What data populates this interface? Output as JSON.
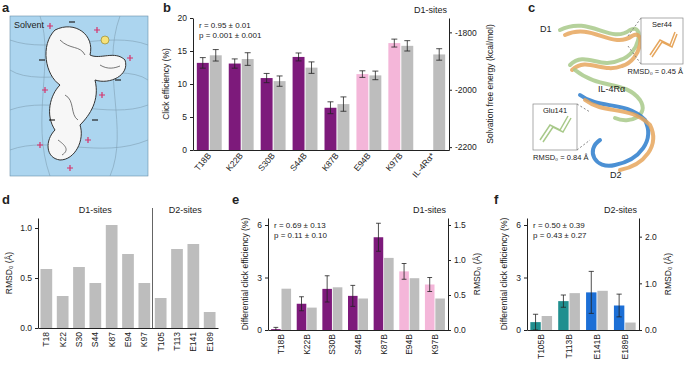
{
  "illustrations": [
    {
      "label": "a",
      "texts": {
        "medium": "Solvent"
      }
    },
    {
      "label": "c",
      "texts": {
        "domain1": "D1",
        "receptor": "IL-4Rα",
        "domain2": "D2",
        "inset1_residue": "Ser44",
        "inset1_rmsd": "RMSD₀ = 0.45 Å",
        "inset2_residue": "Glu141",
        "inset2_rmsd": "RMSD₀ = 0.84 Å"
      }
    }
  ],
  "chart_data": [
    {
      "label": "b",
      "type": "bar",
      "title": "D1-sites",
      "categories": [
        "T18B",
        "K22B",
        "S30B",
        "S44B",
        "K87B",
        "E94B",
        "K97B",
        "IL-4Rα*"
      ],
      "ylabel": "Click efficiency (%)",
      "y2label": "Solvation free energy (kcal/mol)",
      "ylim": [
        0,
        20
      ],
      "yticks": [
        0,
        5,
        10,
        15,
        20
      ],
      "y2lim": [
        -2210,
        -1750
      ],
      "y2ticks": [
        -2200,
        -2000,
        -1800
      ],
      "annotations": [
        "r = 0.95 ± 0.01",
        "p = 0.001 ± 0.001"
      ],
      "series": [
        {
          "colors": [
            "#7d1a7b",
            "#7d1a7b",
            "#7d1a7b",
            "#7d1a7b",
            "#7d1a7b",
            "#f4b6d9",
            "#f4b6d9",
            null
          ],
          "values": [
            13.2,
            13.1,
            10.9,
            14.1,
            6.4,
            11.5,
            16.2,
            null
          ],
          "errors": [
            0.8,
            0.7,
            0.7,
            0.6,
            0.9,
            0.5,
            0.6,
            null
          ]
        },
        {
          "axis": "y2",
          "color": "#bdbdbd",
          "values": [
            -1880,
            -1893,
            -1970,
            -1923,
            -2050,
            -1950,
            -1847,
            -1877
          ],
          "errors": [
            20,
            22,
            18,
            20,
            25,
            15,
            18,
            20
          ]
        }
      ]
    },
    {
      "label": "d",
      "type": "bar",
      "categories": [
        "T18",
        "K22",
        "S30",
        "S44",
        "K87",
        "E94",
        "K97",
        "T105",
        "T113",
        "E141",
        "E189"
      ],
      "ylabel": "RMSD₀ (Å)",
      "ylim": [
        0,
        1.1
      ],
      "yticks": [
        {
          "value": 0,
          "label": "0.0"
        },
        {
          "value": 0.5,
          "label": "0.5"
        },
        {
          "value": 1,
          "label": "1.0"
        }
      ],
      "annotations": [
        "D1-sites",
        "D2-sites"
      ],
      "color": "#bdbdbd",
      "values": [
        0.59,
        0.32,
        0.61,
        0.45,
        1.03,
        0.74,
        0.45,
        0.3,
        0.79,
        0.84,
        0.16
      ]
    },
    {
      "label": "e",
      "type": "bar",
      "title": "D1-sites",
      "categories": [
        "T18B",
        "K22B",
        "S30B",
        "S44B",
        "K87B",
        "E94B",
        "K97B"
      ],
      "ylabel": "Differential click efficiency (%)",
      "y2label": "RMSD₀ (Å)",
      "ylim": [
        0,
        6.4
      ],
      "yticks": [
        0,
        3,
        6
      ],
      "y2lim": [
        0,
        1.6
      ],
      "y2ticks": [
        {
          "value": 0,
          "label": "0.0"
        },
        {
          "value": 0.5,
          "label": "0.5"
        },
        {
          "value": 1,
          "label": "1.0"
        },
        {
          "value": 1.5,
          "label": "1.5"
        }
      ],
      "annotations": [
        "r = 0.69 ± 0.13",
        "p = 0.11 ± 0.10"
      ],
      "series": [
        {
          "colors": [
            "#7d1a7b",
            "#7d1a7b",
            "#7d1a7b",
            "#7d1a7b",
            "#7d1a7b",
            "#f4b6d9",
            "#f4b6d9"
          ],
          "values": [
            0.05,
            1.5,
            2.35,
            1.95,
            5.3,
            3.35,
            2.6
          ],
          "errors": [
            0.1,
            0.4,
            0.75,
            0.6,
            0.8,
            0.45,
            0.4
          ]
        },
        {
          "axis": "y2",
          "color": "#bdbdbd",
          "values": [
            0.59,
            0.32,
            0.61,
            0.45,
            1.03,
            0.74,
            0.45
          ]
        }
      ]
    },
    {
      "label": "f",
      "type": "bar",
      "title": "D2-sites",
      "categories": [
        "T105B",
        "T113B",
        "E141B",
        "E189B"
      ],
      "ylabel": "Differential click efficiency (%)",
      "y2label": "RMSD₀ (Å)",
      "ylim": [
        0,
        6.4
      ],
      "yticks": [
        0,
        3,
        6
      ],
      "y2lim": [
        0,
        2.4
      ],
      "y2ticks": [
        {
          "value": 0,
          "label": "0.0"
        },
        {
          "value": 1,
          "label": "1.0"
        },
        {
          "value": 2,
          "label": "2.0"
        }
      ],
      "annotations": [
        "r = 0.50 ± 0.39",
        "p = 0.43 ± 0.27"
      ],
      "series": [
        {
          "colors": [
            "#1f8f8f",
            "#1f8f8f",
            "#1c6fd6",
            "#1c6fd6"
          ],
          "values": [
            0.45,
            1.65,
            2.15,
            1.4
          ],
          "errors": [
            0.45,
            0.35,
            1.2,
            0.65
          ]
        },
        {
          "axis": "y2",
          "color": "#bdbdbd",
          "values": [
            0.3,
            0.79,
            0.84,
            0.16
          ]
        }
      ]
    }
  ]
}
